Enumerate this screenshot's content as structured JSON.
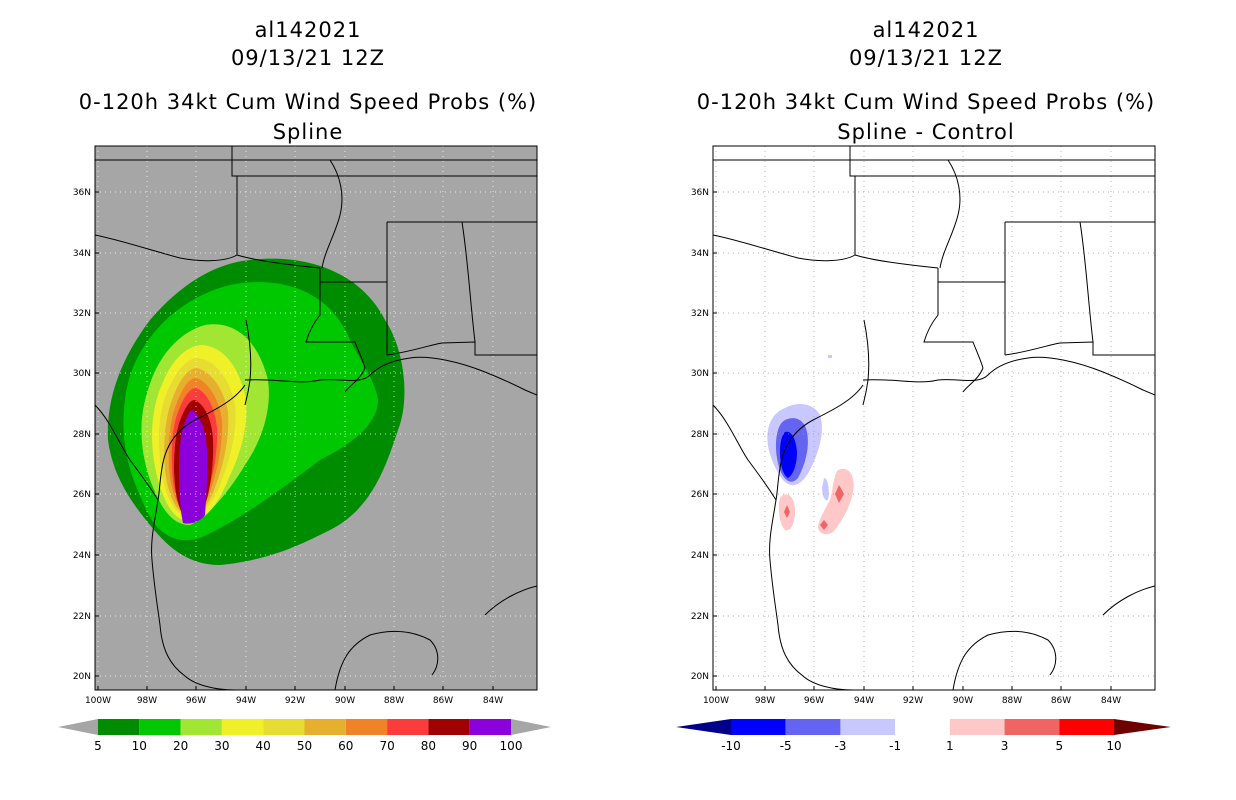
{
  "left_panel": {
    "storm_id": "al142021",
    "datetime": "09/13/21 12Z",
    "product": "0-120h 34kt Cum Wind Speed Probs (%)",
    "subtitle": "Spline",
    "background_color": "#a6a6a6",
    "colorbar": {
      "labels": [
        "5",
        "10",
        "20",
        "30",
        "40",
        "50",
        "60",
        "70",
        "80",
        "90",
        "100"
      ],
      "colors": [
        "#008c00",
        "#00c800",
        "#a0e632",
        "#f0f028",
        "#e6dc32",
        "#e6af2d",
        "#f08228",
        "#fa3c3c",
        "#a00000",
        "#8c00dc"
      ],
      "end_arrow_color": "#a6a6a6"
    }
  },
  "right_panel": {
    "storm_id": "al142021",
    "datetime": "09/13/21 12Z",
    "product": "0-120h 34kt Cum Wind Speed Probs (%)",
    "subtitle": "Spline - Control",
    "background_color": "#ffffff",
    "colorbar": {
      "labels": [
        "-10",
        "-5",
        "-3",
        "-1",
        "1",
        "3",
        "5",
        "10"
      ],
      "colors": [
        "#0000ff",
        "#6464f0",
        "#c8c8ff",
        "#ffffff",
        "#ffc8c8",
        "#f06464",
        "#ff0000"
      ],
      "left_arrow_color": "#00008b",
      "right_arrow_color": "#6e0000"
    }
  },
  "axes": {
    "lat_labels": [
      "36N",
      "34N",
      "32N",
      "30N",
      "28N",
      "26N",
      "24N",
      "22N",
      "20N"
    ],
    "lon_labels": [
      "100W",
      "98W",
      "96W",
      "94W",
      "92W",
      "90W",
      "88W",
      "86W",
      "84W"
    ]
  }
}
